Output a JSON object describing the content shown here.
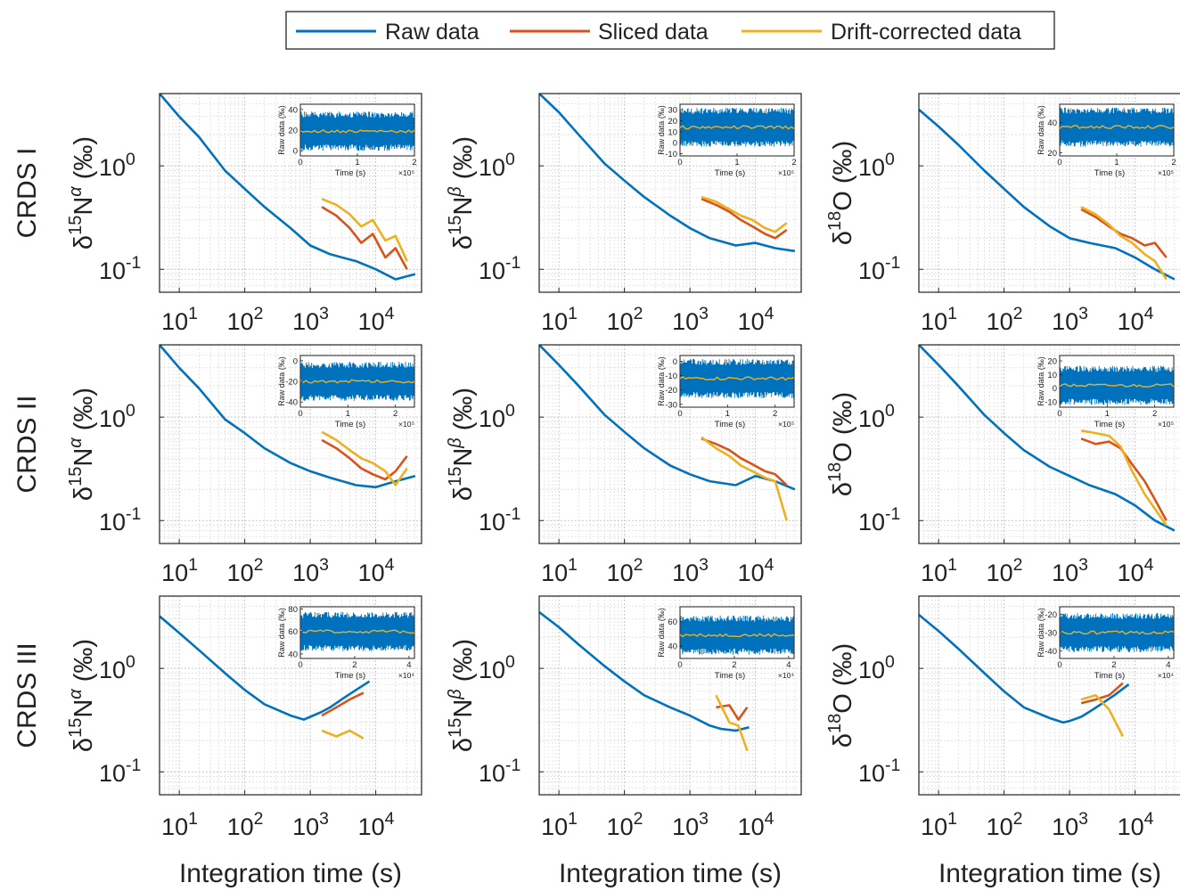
{
  "chart_data": {
    "type": "line",
    "legend": {
      "placement": "top-center",
      "entries": [
        {
          "name": "Raw data",
          "color": "#0072BD"
        },
        {
          "name": "Sliced data",
          "color": "#D95319"
        },
        {
          "name": "Drift-corrected data",
          "color": "#EDB120"
        }
      ]
    },
    "x_scale": "log",
    "y_scale": "log",
    "xlim": [
      5,
      50000
    ],
    "ylim": [
      0.06,
      5
    ],
    "x_ticks": [
      {
        "value": 10,
        "base": "10",
        "exp": "1"
      },
      {
        "value": 100,
        "base": "10",
        "exp": "2"
      },
      {
        "value": 1000,
        "base": "10",
        "exp": "3"
      },
      {
        "value": 10000,
        "base": "10",
        "exp": "4"
      }
    ],
    "y_ticks": [
      {
        "value": 1,
        "base": "10",
        "exp": "0"
      },
      {
        "value": 0.1,
        "base": "10",
        "exp": "-1"
      }
    ],
    "xlabel": "Integration time (s)",
    "row_labels": [
      "CRDS I",
      "CRDS II",
      "CRDS III"
    ],
    "col_ylabels": [
      {
        "pre": "δ",
        "sup": "15",
        "main": "N",
        "sup2": "α",
        "unit": " (‰)"
      },
      {
        "pre": "δ",
        "sup": "15",
        "main": "N",
        "sup2": "β",
        "unit": " (‰)"
      },
      {
        "pre": "δ",
        "sup": "18",
        "main": "O",
        "sup2": "",
        "unit": " (‰)"
      }
    ],
    "inset": {
      "ylabel": "Raw data (‰)",
      "xlabel": "Time (s)"
    },
    "panels": [
      {
        "row": 0,
        "col": 0,
        "inset": {
          "yticks": [
            40,
            20,
            0
          ],
          "ylim": [
            -5,
            45
          ],
          "xticks": [
            "0",
            "1",
            "2"
          ],
          "xmult": "×10⁵",
          "xmax": 2,
          "mean": 19
        },
        "series": [
          {
            "name": "Raw data",
            "x": [
              5,
              10,
              20,
              50,
              100,
              200,
              500,
              1000,
              2000,
              5000,
              10000,
              20000,
              40000
            ],
            "y": [
              5,
              3,
              1.9,
              0.9,
              0.6,
              0.4,
              0.25,
              0.17,
              0.14,
              0.12,
              0.1,
              0.08,
              0.09
            ]
          },
          {
            "name": "Sliced data",
            "x": [
              1500,
              2500,
              4000,
              6000,
              9000,
              14000,
              20000,
              30000
            ],
            "y": [
              0.4,
              0.33,
              0.25,
              0.18,
              0.22,
              0.13,
              0.16,
              0.1
            ]
          },
          {
            "name": "Drift-corrected data",
            "x": [
              1500,
              2500,
              4000,
              6000,
              9000,
              14000,
              20000,
              30000
            ],
            "y": [
              0.48,
              0.42,
              0.34,
              0.26,
              0.3,
              0.19,
              0.21,
              0.12
            ]
          }
        ]
      },
      {
        "row": 0,
        "col": 1,
        "inset": {
          "yticks": [
            30,
            20,
            10,
            0,
            -10
          ],
          "ylim": [
            -12,
            35
          ],
          "xticks": [
            "0",
            "1",
            "2"
          ],
          "xmult": "×10⁵",
          "xmax": 2,
          "mean": 14
        },
        "series": [
          {
            "name": "Raw data",
            "x": [
              5,
              10,
              20,
              50,
              100,
              200,
              500,
              1000,
              2000,
              5000,
              10000,
              20000,
              40000
            ],
            "y": [
              5,
              3.3,
              2,
              1.05,
              0.72,
              0.5,
              0.33,
              0.25,
              0.2,
              0.17,
              0.18,
              0.16,
              0.15
            ]
          },
          {
            "name": "Sliced data",
            "x": [
              1500,
              2500,
              4000,
              6000,
              9000,
              14000,
              20000,
              30000
            ],
            "y": [
              0.48,
              0.42,
              0.36,
              0.3,
              0.26,
              0.22,
              0.2,
              0.24
            ]
          },
          {
            "name": "Drift-corrected data",
            "x": [
              1500,
              2500,
              4000,
              6000,
              9000,
              14000,
              20000,
              30000
            ],
            "y": [
              0.5,
              0.45,
              0.38,
              0.33,
              0.3,
              0.25,
              0.23,
              0.28
            ]
          }
        ]
      },
      {
        "row": 0,
        "col": 2,
        "inset": {
          "yticks": [
            40,
            20
          ],
          "ylim": [
            18,
            52
          ],
          "xticks": [
            "0",
            "1",
            "2"
          ],
          "xmult": "×10⁵",
          "xmax": 2,
          "mean": 37
        },
        "series": [
          {
            "name": "Raw data",
            "x": [
              5,
              10,
              20,
              50,
              100,
              200,
              500,
              1000,
              2000,
              5000,
              10000,
              20000,
              40000
            ],
            "y": [
              3.5,
              2.4,
              1.6,
              0.9,
              0.6,
              0.4,
              0.26,
              0.2,
              0.18,
              0.16,
              0.13,
              0.1,
              0.08
            ]
          },
          {
            "name": "Sliced data",
            "x": [
              1500,
              2500,
              4000,
              6000,
              9000,
              14000,
              20000,
              30000
            ],
            "y": [
              0.38,
              0.32,
              0.26,
              0.22,
              0.2,
              0.17,
              0.18,
              0.13
            ]
          },
          {
            "name": "Drift-corrected data",
            "x": [
              1500,
              2500,
              4000,
              6000,
              9000,
              14000,
              20000,
              30000
            ],
            "y": [
              0.4,
              0.34,
              0.27,
              0.21,
              0.18,
              0.14,
              0.12,
              0.08
            ]
          }
        ]
      },
      {
        "row": 1,
        "col": 0,
        "inset": {
          "yticks": [
            0,
            -20,
            -40
          ],
          "ylim": [
            -45,
            5
          ],
          "xticks": [
            "0",
            "1",
            "2"
          ],
          "xmult": "×10⁵",
          "xmax": 2.4,
          "mean": -20
        },
        "series": [
          {
            "name": "Raw data",
            "x": [
              5,
              10,
              20,
              50,
              100,
              200,
              500,
              1000,
              2000,
              5000,
              10000,
              20000,
              40000
            ],
            "y": [
              5,
              3,
              1.9,
              0.95,
              0.7,
              0.5,
              0.36,
              0.3,
              0.26,
              0.22,
              0.21,
              0.24,
              0.27
            ]
          },
          {
            "name": "Sliced data",
            "x": [
              1500,
              2500,
              4000,
              6000,
              9000,
              14000,
              20000,
              30000
            ],
            "y": [
              0.6,
              0.5,
              0.4,
              0.32,
              0.28,
              0.25,
              0.3,
              0.42
            ]
          },
          {
            "name": "Drift-corrected data",
            "x": [
              1500,
              2500,
              4000,
              6000,
              9000,
              14000,
              20000,
              30000
            ],
            "y": [
              0.72,
              0.6,
              0.48,
              0.4,
              0.36,
              0.3,
              0.22,
              0.32
            ]
          }
        ]
      },
      {
        "row": 1,
        "col": 1,
        "inset": {
          "yticks": [
            0,
            -10,
            -20,
            -30
          ],
          "ylim": [
            -32,
            4
          ],
          "xticks": [
            "0",
            "1",
            "2"
          ],
          "xmult": "×10⁵",
          "xmax": 2.4,
          "mean": -12
        },
        "series": [
          {
            "name": "Raw data",
            "x": [
              5,
              10,
              20,
              50,
              100,
              200,
              500,
              1000,
              2000,
              5000,
              10000,
              20000,
              40000
            ],
            "y": [
              5,
              3.2,
              2,
              1.05,
              0.72,
              0.5,
              0.34,
              0.28,
              0.24,
              0.22,
              0.27,
              0.24,
              0.2
            ]
          },
          {
            "name": "Sliced data",
            "x": [
              1500,
              2500,
              4000,
              6000,
              9000,
              14000,
              20000,
              30000
            ],
            "y": [
              0.62,
              0.55,
              0.48,
              0.4,
              0.35,
              0.3,
              0.28,
              0.22
            ]
          },
          {
            "name": "Drift-corrected data",
            "x": [
              1500,
              2500,
              4000,
              6000,
              9000,
              14000,
              20000,
              30000
            ],
            "y": [
              0.64,
              0.5,
              0.42,
              0.34,
              0.3,
              0.26,
              0.24,
              0.1
            ]
          }
        ]
      },
      {
        "row": 1,
        "col": 2,
        "inset": {
          "yticks": [
            20,
            10,
            0,
            -10
          ],
          "ylim": [
            -14,
            24
          ],
          "xticks": [
            "0",
            "1",
            "2"
          ],
          "xmult": "×10⁵",
          "xmax": 2.4,
          "mean": 2
        },
        "series": [
          {
            "name": "Raw data",
            "x": [
              5,
              10,
              20,
              50,
              100,
              200,
              500,
              1000,
              2000,
              5000,
              10000,
              20000,
              40000
            ],
            "y": [
              5,
              3.2,
              2,
              1.05,
              0.7,
              0.48,
              0.33,
              0.27,
              0.22,
              0.18,
              0.14,
              0.1,
              0.08
            ]
          },
          {
            "name": "Sliced data",
            "x": [
              1500,
              2500,
              4000,
              6000,
              9000,
              14000,
              20000,
              30000
            ],
            "y": [
              0.62,
              0.55,
              0.58,
              0.5,
              0.35,
              0.24,
              0.16,
              0.1
            ]
          },
          {
            "name": "Drift-corrected data",
            "x": [
              1500,
              2500,
              4000,
              6000,
              9000,
              14000,
              20000,
              30000
            ],
            "y": [
              0.74,
              0.7,
              0.66,
              0.52,
              0.3,
              0.18,
              0.13,
              0.09
            ]
          }
        ]
      },
      {
        "row": 2,
        "col": 0,
        "inset": {
          "yticks": [
            80,
            60,
            40
          ],
          "ylim": [
            36,
            82
          ],
          "xticks": [
            "0",
            "2",
            "4"
          ],
          "xmult": "×10⁴",
          "xmax": 4.2,
          "mean": 60
        },
        "series": [
          {
            "name": "Raw data",
            "x": [
              5,
              10,
              20,
              50,
              100,
              200,
              500,
              800,
              1000,
              1500,
              2000,
              3000,
              5000,
              8000
            ],
            "y": [
              3.2,
              2.2,
              1.5,
              0.9,
              0.62,
              0.45,
              0.35,
              0.32,
              0.34,
              0.38,
              0.42,
              0.5,
              0.62,
              0.75
            ]
          },
          {
            "name": "Sliced data",
            "x": [
              1500,
              2500,
              4000,
              6500
            ],
            "y": [
              0.35,
              0.42,
              0.5,
              0.58
            ]
          },
          {
            "name": "Drift-corrected data",
            "x": [
              1500,
              2500,
              4000,
              6500
            ],
            "y": [
              0.25,
              0.22,
              0.25,
              0.21
            ]
          }
        ]
      },
      {
        "row": 2,
        "col": 1,
        "inset": {
          "yticks": [
            60,
            40
          ],
          "ylim": [
            30,
            72
          ],
          "xticks": [
            "0",
            "2",
            "4"
          ],
          "xmult": "×10⁴",
          "xmax": 4.2,
          "mean": 49
        },
        "series": [
          {
            "name": "Raw data",
            "x": [
              5,
              10,
              20,
              50,
              100,
              200,
              500,
              1000,
              2000,
              3000,
              5000,
              8000
            ],
            "y": [
              3.5,
              2.5,
              1.7,
              1.05,
              0.75,
              0.55,
              0.42,
              0.35,
              0.28,
              0.26,
              0.25,
              0.27
            ]
          },
          {
            "name": "Sliced data",
            "x": [
              2500,
              4000,
              5500,
              7500
            ],
            "y": [
              0.42,
              0.44,
              0.32,
              0.42
            ]
          },
          {
            "name": "Drift-corrected data",
            "x": [
              2500,
              4000,
              5500,
              7500
            ],
            "y": [
              0.55,
              0.3,
              0.28,
              0.16
            ]
          }
        ]
      },
      {
        "row": 2,
        "col": 2,
        "inset": {
          "yticks": [
            -20,
            -30,
            -40
          ],
          "ylim": [
            -44,
            -16
          ],
          "xticks": [
            "0",
            "2",
            "4"
          ],
          "xmult": "×10⁴",
          "xmax": 4.2,
          "mean": -30
        },
        "series": [
          {
            "name": "Raw data",
            "x": [
              5,
              10,
              20,
              50,
              100,
              200,
              500,
              800,
              1000,
              1500,
              2000,
              3000,
              5000,
              8000
            ],
            "y": [
              3.3,
              2.3,
              1.55,
              0.9,
              0.6,
              0.42,
              0.33,
              0.3,
              0.31,
              0.34,
              0.38,
              0.45,
              0.56,
              0.7
            ]
          },
          {
            "name": "Sliced data",
            "x": [
              1500,
              2500,
              4000,
              6500
            ],
            "y": [
              0.46,
              0.5,
              0.55,
              0.72
            ]
          },
          {
            "name": "Drift-corrected data",
            "x": [
              1500,
              2500,
              4000,
              6500
            ],
            "y": [
              0.5,
              0.55,
              0.4,
              0.22
            ]
          }
        ]
      }
    ]
  }
}
